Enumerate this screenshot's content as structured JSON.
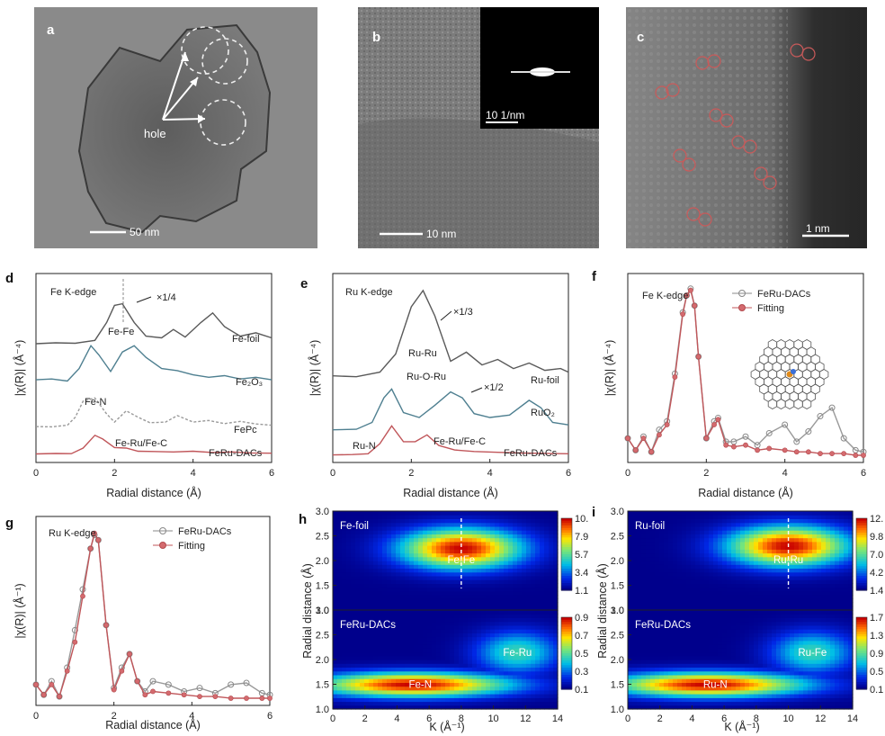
{
  "micrographs": [
    {
      "label": "a",
      "scale": "50 nm",
      "annotation": "hole"
    },
    {
      "label": "b",
      "scale": "10 nm",
      "inset_scale": "10 1/nm"
    },
    {
      "label": "c",
      "scale": "1 nm"
    }
  ],
  "axes_text": {
    "xlabel": "Radial distance (Å)",
    "ylabel_d": "|χ(R)| (Å⁻⁴)",
    "ylabel_e": "|χ(R)| (Å⁻⁴)",
    "ylabel_f": "|χ(R)| (Å⁻⁴)",
    "ylabel_g": "|χ(R)| (Å⁻¹)",
    "ylabel_h": "Radial distance (Å)",
    "xlabel_wt": "K (Å⁻¹)"
  },
  "panel_d": {
    "label": "d",
    "title": "Fe K-edge",
    "curves": [
      "Fe-foil",
      "Fe₂O₃",
      "FePc",
      "FeRu-DACs"
    ],
    "annotations": {
      "scale": "×1/4",
      "fefe": "Fe-Fe",
      "fen": "Fe-N",
      "feru": "Fe-Ru/Fe-C"
    }
  },
  "panel_e": {
    "label": "e",
    "title": "Ru K-edge",
    "curves": [
      "Ru-foil",
      "RuO₂",
      "FeRu-DACs"
    ],
    "annotations": {
      "scale1": "×1/3",
      "scale2": "×1/2",
      "ruru": "Ru-Ru",
      "ruoru": "Ru-O-Ru",
      "run": "Ru-N",
      "feruc": "Fe-Ru/Fe-C"
    }
  },
  "panel_f": {
    "label": "f",
    "title": "Fe K-edge",
    "legend": [
      "FeRu-DACs",
      "Fitting"
    ]
  },
  "panel_g": {
    "label": "g",
    "title": "Ru K-edge",
    "legend": [
      "FeRu-DACs",
      "Fitting"
    ]
  },
  "panel_h": {
    "label": "h",
    "top": {
      "title": "Fe-foil",
      "feature": "Fe-Fe",
      "ticks": [
        "10.27",
        "7.98",
        "5.70",
        "3.42",
        "1.14"
      ]
    },
    "bottom": {
      "title": "FeRu-DACs",
      "feature1": "Fe-N",
      "feature2": "Fe-Ru",
      "ticks": [
        "0.98",
        "0.76",
        "0.55",
        "0.33",
        "0.11"
      ]
    }
  },
  "panel_i": {
    "label": "i",
    "top": {
      "title": "Ru-foil",
      "feature": "Ru-Ru",
      "ticks": [
        "12.65",
        "9.84",
        "7.03",
        "4.22",
        "1.41"
      ]
    },
    "bottom": {
      "title": "FeRu-DACs",
      "feature1": "Ru-N",
      "feature2": "Ru-Fe",
      "ticks": [
        "1.71",
        "1.33",
        "0.95",
        "0.57",
        "0.19"
      ]
    }
  },
  "chart_data": [
    {
      "type": "line",
      "panel": "d",
      "xlim": [
        0,
        6
      ],
      "xticks": [
        0,
        2,
        4,
        6
      ],
      "xlabel": "Radial distance (Å)",
      "ylabel": "|χ(R)| (Å⁻⁴)",
      "series": [
        {
          "name": "Fe-foil",
          "x": [
            0,
            0.5,
            1.0,
            1.5,
            1.8,
            2.0,
            2.2,
            2.5,
            2.8,
            3.2,
            3.5,
            3.8,
            4.2,
            4.5,
            4.8,
            5.2,
            5.6,
            6.0
          ],
          "y": [
            0.04,
            0.06,
            0.05,
            0.12,
            0.55,
            0.96,
            1.0,
            0.55,
            0.22,
            0.18,
            0.38,
            0.2,
            0.55,
            0.78,
            0.45,
            0.22,
            0.3,
            0.18
          ]
        },
        {
          "name": "Fe₂O₃",
          "x": [
            0,
            0.4,
            0.8,
            1.1,
            1.4,
            1.6,
            1.9,
            2.2,
            2.5,
            2.8,
            3.2,
            3.6,
            4.0,
            4.4,
            4.8,
            5.2,
            5.6,
            6.0
          ],
          "y": [
            0.08,
            0.1,
            0.05,
            0.35,
            0.9,
            0.68,
            0.28,
            0.75,
            0.9,
            0.62,
            0.35,
            0.3,
            0.2,
            0.14,
            0.18,
            0.1,
            0.14,
            0.08
          ]
        },
        {
          "name": "FePc",
          "x": [
            0,
            0.4,
            0.8,
            1.0,
            1.2,
            1.5,
            1.8,
            2.0,
            2.3,
            2.6,
            2.9,
            3.3,
            3.6,
            4.0,
            4.4,
            4.8,
            5.2,
            5.6,
            6.0
          ],
          "y": [
            0.06,
            0.05,
            0.1,
            0.35,
            0.85,
            0.95,
            0.45,
            0.2,
            0.55,
            0.35,
            0.18,
            0.2,
            0.4,
            0.2,
            0.25,
            0.15,
            0.22,
            0.14,
            0.1
          ]
        },
        {
          "name": "FeRu-DACs",
          "x": [
            0,
            0.5,
            0.9,
            1.2,
            1.5,
            1.7,
            2.0,
            2.3,
            2.6,
            3.0,
            3.5,
            4.0,
            4.5,
            5.0,
            5.5,
            6.0
          ],
          "y": [
            0.04,
            0.06,
            0.05,
            0.28,
            0.8,
            0.65,
            0.3,
            0.28,
            0.15,
            0.14,
            0.12,
            0.15,
            0.1,
            0.12,
            0.08,
            0.07
          ]
        }
      ]
    },
    {
      "type": "line",
      "panel": "e",
      "xlim": [
        0,
        6
      ],
      "xticks": [
        0,
        2,
        4,
        6
      ],
      "xlabel": "Radial distance (Å)",
      "ylabel": "|χ(R)| (Å⁻⁴)",
      "series": [
        {
          "name": "Ru-foil",
          "x": [
            0,
            0.6,
            1.2,
            1.6,
            2.0,
            2.3,
            2.6,
            3.0,
            3.4,
            3.8,
            4.2,
            4.6,
            5.0,
            5.4,
            5.8,
            6.0
          ],
          "y": [
            0.06,
            0.05,
            0.1,
            0.3,
            0.82,
            1.0,
            0.72,
            0.22,
            0.32,
            0.18,
            0.24,
            0.14,
            0.2,
            0.12,
            0.14,
            0.1
          ]
        },
        {
          "name": "RuO₂",
          "x": [
            0,
            0.6,
            1.0,
            1.3,
            1.5,
            1.8,
            2.2,
            2.6,
            3.0,
            3.3,
            3.6,
            4.0,
            4.5,
            5.0,
            5.3,
            5.6,
            6.0
          ],
          "y": [
            0.05,
            0.06,
            0.2,
            0.7,
            0.88,
            0.4,
            0.3,
            0.55,
            0.82,
            0.7,
            0.38,
            0.3,
            0.35,
            0.65,
            0.5,
            0.2,
            0.15
          ]
        },
        {
          "name": "FeRu-DACs",
          "x": [
            0,
            0.5,
            0.9,
            1.2,
            1.5,
            1.8,
            2.1,
            2.4,
            2.7,
            3.1,
            3.6,
            4.2,
            4.8,
            5.4,
            6.0
          ],
          "y": [
            0.05,
            0.06,
            0.08,
            0.35,
            0.82,
            0.4,
            0.4,
            0.58,
            0.3,
            0.18,
            0.14,
            0.12,
            0.1,
            0.09,
            0.08
          ]
        }
      ]
    },
    {
      "type": "line",
      "panel": "f",
      "xlim": [
        0,
        6
      ],
      "xticks": [
        0,
        2,
        4,
        6
      ],
      "xlabel": "Radial distance (Å)",
      "ylabel": "|χ(R)| (Å⁻⁴)",
      "series": [
        {
          "name": "FeRu-DACs",
          "x": [
            0,
            0.2,
            0.4,
            0.6,
            0.8,
            1.0,
            1.2,
            1.4,
            1.5,
            1.6,
            1.7,
            1.8,
            2.0,
            2.2,
            2.3,
            2.5,
            2.7,
            3.0,
            3.3,
            3.6,
            4.0,
            4.3,
            4.6,
            4.9,
            5.2,
            5.5,
            5.8,
            6.0
          ],
          "y": [
            0.12,
            0.05,
            0.13,
            0.04,
            0.17,
            0.22,
            0.5,
            0.86,
            0.96,
            1.0,
            0.9,
            0.6,
            0.12,
            0.22,
            0.24,
            0.1,
            0.1,
            0.13,
            0.08,
            0.15,
            0.2,
            0.1,
            0.16,
            0.25,
            0.3,
            0.12,
            0.05,
            0.04
          ]
        },
        {
          "name": "Fitting",
          "x": [
            0,
            0.2,
            0.4,
            0.6,
            0.8,
            1.0,
            1.2,
            1.4,
            1.5,
            1.6,
            1.7,
            1.8,
            2.0,
            2.2,
            2.3,
            2.5,
            2.7,
            3.0,
            3.3,
            3.6,
            4.0,
            4.3,
            4.6,
            4.9,
            5.2,
            5.5,
            5.8,
            6.0
          ],
          "y": [
            0.12,
            0.05,
            0.12,
            0.04,
            0.14,
            0.2,
            0.48,
            0.85,
            0.96,
            0.99,
            0.9,
            0.6,
            0.12,
            0.2,
            0.23,
            0.08,
            0.07,
            0.08,
            0.05,
            0.06,
            0.05,
            0.04,
            0.04,
            0.03,
            0.03,
            0.03,
            0.02,
            0.02
          ]
        }
      ]
    },
    {
      "type": "line",
      "panel": "g",
      "xlim": [
        0,
        6
      ],
      "xticks": [
        0,
        2,
        4,
        6
      ],
      "xlabel": "Radial distance (Å)",
      "ylabel": "|χ(R)| (Å⁻¹)",
      "series": [
        {
          "name": "FeRu-DACs",
          "x": [
            0,
            0.2,
            0.4,
            0.6,
            0.8,
            1.0,
            1.2,
            1.4,
            1.5,
            1.6,
            1.8,
            2.0,
            2.2,
            2.4,
            2.6,
            2.8,
            3.0,
            3.4,
            3.8,
            4.2,
            4.6,
            5.0,
            5.4,
            5.8,
            6.0
          ],
          "y": [
            0.1,
            0.04,
            0.12,
            0.03,
            0.2,
            0.42,
            0.66,
            0.9,
            0.98,
            0.95,
            0.45,
            0.08,
            0.2,
            0.28,
            0.12,
            0.06,
            0.12,
            0.1,
            0.06,
            0.08,
            0.05,
            0.1,
            0.11,
            0.05,
            0.04
          ]
        },
        {
          "name": "Fitting",
          "x": [
            0,
            0.2,
            0.4,
            0.6,
            0.8,
            1.0,
            1.2,
            1.4,
            1.5,
            1.6,
            1.8,
            2.0,
            2.2,
            2.4,
            2.6,
            2.8,
            3.0,
            3.4,
            3.8,
            4.2,
            4.6,
            5.0,
            5.4,
            5.8,
            6.0
          ],
          "y": [
            0.1,
            0.04,
            0.1,
            0.03,
            0.18,
            0.35,
            0.62,
            0.9,
            0.99,
            0.95,
            0.45,
            0.07,
            0.18,
            0.28,
            0.12,
            0.04,
            0.06,
            0.05,
            0.04,
            0.03,
            0.03,
            0.02,
            0.02,
            0.02,
            0.02
          ]
        }
      ]
    },
    {
      "type": "heatmap",
      "panel": "h",
      "xlabel": "K (Å⁻¹)",
      "ylabel": "Radial distance (Å)",
      "xlim": [
        0,
        14
      ],
      "xticks": [
        0,
        2,
        4,
        6,
        8,
        10,
        12,
        14
      ],
      "ylim": [
        1.0,
        3.0
      ],
      "yticks": [
        1.0,
        1.5,
        2.0,
        2.5,
        3.0
      ],
      "top": {
        "peak_k": 8.0,
        "peak_r": 2.25,
        "zmax": 10.27,
        "zticks": [
          10.27,
          7.98,
          5.7,
          3.42,
          1.14
        ]
      },
      "bottom": {
        "peak_k": 5.0,
        "peak_r": 1.5,
        "zmax": 0.98,
        "zticks": [
          0.98,
          0.76,
          0.55,
          0.33,
          0.11
        ]
      }
    },
    {
      "type": "heatmap",
      "panel": "i",
      "xlabel": "K (Å⁻¹)",
      "ylabel": "Radial distance (Å)",
      "xlim": [
        0,
        14
      ],
      "xticks": [
        0,
        2,
        4,
        6,
        8,
        10,
        12,
        14
      ],
      "ylim": [
        1.0,
        3.0
      ],
      "yticks": [
        1.0,
        1.5,
        2.0,
        2.5,
        3.0
      ],
      "top": {
        "peak_k": 10.0,
        "peak_r": 2.3,
        "zmax": 12.65,
        "zticks": [
          12.65,
          9.84,
          7.03,
          4.22,
          1.41
        ]
      },
      "bottom": {
        "peak_k": 5.0,
        "peak_r": 1.5,
        "zmax": 1.71,
        "zticks": [
          1.71,
          1.33,
          0.95,
          0.57,
          0.19
        ]
      }
    }
  ]
}
